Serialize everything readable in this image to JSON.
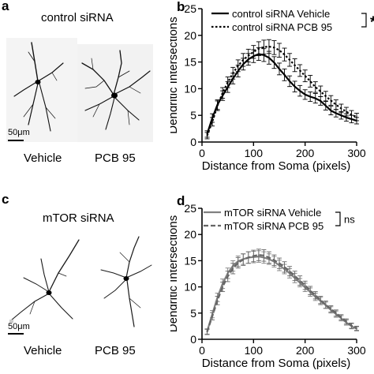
{
  "panels": {
    "a": {
      "letter": "a",
      "condition": "control siRNA",
      "scale_label": "50μm",
      "label_left": "Vehicle",
      "label_right": "PCB 95"
    },
    "c": {
      "letter": "c",
      "condition": "mTOR siRNA",
      "scale_label": "50μm",
      "label_left": "Vehicle",
      "label_right": "PCB 95"
    }
  },
  "chart_data": [
    {
      "panel_letter": "b",
      "type": "line",
      "xlabel": "Distance from Soma (pixels)",
      "ylabel": "Dendritic Intersections",
      "xlim": [
        0,
        300
      ],
      "ylim": [
        0,
        25
      ],
      "xticks": [
        0,
        100,
        200,
        300
      ],
      "yticks": [
        0,
        5,
        10,
        15,
        20,
        25
      ],
      "significance": "*",
      "legend_position": "top-right",
      "x": [
        10,
        20,
        30,
        40,
        50,
        60,
        70,
        80,
        90,
        100,
        110,
        120,
        130,
        140,
        150,
        160,
        170,
        180,
        190,
        200,
        210,
        220,
        230,
        240,
        250,
        260,
        270,
        280,
        290,
        300
      ],
      "series": [
        {
          "name": "control siRNA Vehicle",
          "style": "solid",
          "color": "#000000",
          "values": [
            1.5,
            4.5,
            7.0,
            8.7,
            10.3,
            11.9,
            13.3,
            14.6,
            15.5,
            16.1,
            16.5,
            16.3,
            15.8,
            14.9,
            13.7,
            12.6,
            11.4,
            10.4,
            9.6,
            8.9,
            8.5,
            8.2,
            7.7,
            6.8,
            5.9,
            5.4,
            5.0,
            4.6,
            4.3,
            4.0
          ],
          "error": [
            0.6,
            0.8,
            0.9,
            0.9,
            1.0,
            1.0,
            1.1,
            1.1,
            1.1,
            1.2,
            1.2,
            1.2,
            1.2,
            1.1,
            1.1,
            1.1,
            1.0,
            1.0,
            1.0,
            0.9,
            0.9,
            0.9,
            0.8,
            0.8,
            0.8,
            0.7,
            0.7,
            0.7,
            0.7,
            0.6
          ]
        },
        {
          "name": "control siRNA PCB 95",
          "style": "dotted",
          "color": "#000000",
          "values": [
            1.2,
            3.8,
            6.8,
            9.2,
            11.2,
            12.9,
            14.3,
            15.4,
            16.2,
            16.9,
            17.5,
            17.8,
            17.9,
            17.7,
            17.2,
            16.4,
            15.4,
            14.4,
            13.4,
            12.4,
            11.4,
            10.3,
            9.5,
            8.6,
            7.8,
            7.0,
            6.3,
            5.7,
            5.1,
            4.7
          ],
          "error": [
            0.6,
            0.8,
            0.9,
            1.0,
            1.0,
            1.1,
            1.1,
            1.2,
            1.2,
            1.2,
            1.3,
            1.3,
            1.3,
            1.3,
            1.3,
            1.2,
            1.2,
            1.2,
            1.1,
            1.1,
            1.1,
            1.0,
            1.0,
            0.9,
            0.9,
            0.9,
            0.8,
            0.8,
            0.8,
            0.7
          ]
        }
      ]
    },
    {
      "panel_letter": "d",
      "type": "line",
      "xlabel": "Distance from Soma (pixels)",
      "ylabel": "Dendritic Intersections",
      "xlim": [
        0,
        300
      ],
      "ylim": [
        0,
        25
      ],
      "xticks": [
        0,
        100,
        200,
        300
      ],
      "yticks": [
        0,
        5,
        10,
        15,
        20,
        25
      ],
      "significance": "ns",
      "legend_position": "top-left",
      "x": [
        10,
        20,
        30,
        40,
        50,
        60,
        70,
        80,
        90,
        100,
        110,
        120,
        130,
        140,
        150,
        160,
        170,
        180,
        190,
        200,
        210,
        220,
        230,
        240,
        250,
        260,
        270,
        280,
        290,
        300
      ],
      "series": [
        {
          "name": "mTOR siRNA Vehicle",
          "style": "solid",
          "color": "#808080",
          "values": [
            1.5,
            4.8,
            8.0,
            10.6,
            12.6,
            14.0,
            14.9,
            15.3,
            15.6,
            15.7,
            15.8,
            15.6,
            15.3,
            14.8,
            14.1,
            13.4,
            12.6,
            11.7,
            10.8,
            9.9,
            9.0,
            8.1,
            7.3,
            6.5,
            5.6,
            4.8,
            4.0,
            3.2,
            2.5,
            2.0
          ],
          "error": [
            0.5,
            0.7,
            0.8,
            0.9,
            1.0,
            1.0,
            1.0,
            1.0,
            1.1,
            1.1,
            1.1,
            1.1,
            1.0,
            1.0,
            1.0,
            0.9,
            0.9,
            0.9,
            0.8,
            0.8,
            0.8,
            0.7,
            0.7,
            0.6,
            0.6,
            0.6,
            0.5,
            0.5,
            0.5,
            0.4
          ]
        },
        {
          "name": "mTOR siRNA PCB 95",
          "style": "dashed",
          "color": "#666666",
          "values": [
            1.4,
            4.4,
            7.4,
            10.0,
            12.0,
            13.5,
            14.6,
            15.2,
            15.6,
            15.9,
            16.1,
            16.0,
            15.6,
            15.1,
            14.5,
            13.8,
            13.0,
            12.1,
            11.2,
            10.3,
            9.3,
            8.4,
            7.5,
            6.6,
            5.8,
            5.0,
            4.2,
            3.4,
            2.6,
            2.1
          ],
          "error": [
            0.5,
            0.7,
            0.8,
            0.9,
            1.0,
            1.0,
            1.0,
            1.1,
            1.1,
            1.1,
            1.1,
            1.1,
            1.1,
            1.0,
            1.0,
            1.0,
            0.9,
            0.9,
            0.9,
            0.8,
            0.8,
            0.7,
            0.7,
            0.7,
            0.6,
            0.6,
            0.5,
            0.5,
            0.5,
            0.4
          ]
        }
      ]
    }
  ]
}
